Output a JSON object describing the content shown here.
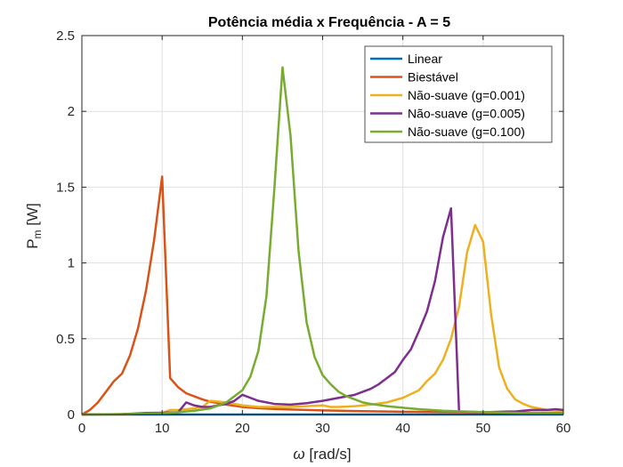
{
  "chart_data": {
    "type": "line",
    "title": "Potência média x Frequência - A = 5",
    "xlabel": {
      "symbol": "ω",
      "text": " [rad/s]"
    },
    "ylabel": {
      "main": "P",
      "sub": "m",
      "unit": " [W]"
    },
    "xlim": [
      0,
      60
    ],
    "ylim": [
      0,
      2.5
    ],
    "xticks": [
      0,
      10,
      20,
      30,
      40,
      50,
      60
    ],
    "yticks": [
      0,
      0.5,
      1,
      1.5,
      2,
      2.5
    ],
    "xtick_labels": [
      "0",
      "10",
      "20",
      "30",
      "40",
      "50",
      "60"
    ],
    "ytick_labels": [
      "0",
      "0.5",
      "1",
      "1.5",
      "2",
      "2.5"
    ],
    "grid": true,
    "legend_position": "top-right",
    "series": [
      {
        "name": "Linear",
        "color": "#0072BD",
        "x": [
          0,
          5,
          10,
          15,
          20,
          25,
          30,
          35,
          40,
          45,
          50,
          55,
          60
        ],
        "y": [
          0,
          0,
          0,
          0,
          0,
          0,
          0,
          0,
          0,
          0,
          0,
          0,
          0
        ]
      },
      {
        "name": "Biestável",
        "color": "#D95319",
        "x": [
          0,
          1,
          2,
          3,
          4,
          5,
          6,
          7,
          8,
          9,
          10,
          11,
          12,
          13,
          14,
          15,
          16,
          17,
          18,
          19,
          20,
          22,
          24,
          26,
          28,
          30,
          35,
          40,
          45,
          50,
          55,
          60
        ],
        "y": [
          0,
          0.03,
          0.08,
          0.15,
          0.22,
          0.27,
          0.39,
          0.57,
          0.82,
          1.15,
          1.57,
          0.24,
          0.18,
          0.14,
          0.12,
          0.1,
          0.085,
          0.075,
          0.065,
          0.058,
          0.05,
          0.042,
          0.037,
          0.033,
          0.03,
          0.027,
          0.022,
          0.018,
          0.016,
          0.014,
          0.012,
          0.011
        ]
      },
      {
        "name": "Não-suave (g=0.001)",
        "color": "#EDB120",
        "x": [
          0,
          5,
          8,
          10,
          11,
          12,
          14,
          15,
          16,
          18,
          20,
          22,
          24,
          26,
          28,
          30,
          31,
          32,
          34,
          36,
          38,
          40,
          42,
          43,
          44,
          45,
          46,
          47,
          48,
          49,
          50,
          51,
          52,
          53,
          54,
          55,
          56,
          58,
          60
        ],
        "y": [
          0,
          0.002,
          0.005,
          0.01,
          0.03,
          0.03,
          0.04,
          0.05,
          0.09,
          0.08,
          0.06,
          0.05,
          0.05,
          0.05,
          0.055,
          0.06,
          0.05,
          0.05,
          0.055,
          0.065,
          0.08,
          0.11,
          0.16,
          0.22,
          0.27,
          0.36,
          0.5,
          0.71,
          1.07,
          1.25,
          1.14,
          0.66,
          0.31,
          0.17,
          0.1,
          0.07,
          0.05,
          0.03,
          0.025
        ]
      },
      {
        "name": "Não-suave (g=0.005)",
        "color": "#7E2F8E",
        "x": [
          0,
          5,
          8,
          10,
          12,
          13,
          14,
          15,
          16,
          17,
          18,
          19,
          20,
          21,
          22,
          24,
          26,
          28,
          30,
          32,
          34,
          35,
          36,
          37,
          38,
          39,
          40,
          41,
          42,
          43,
          44,
          45,
          46,
          47,
          50,
          53,
          54,
          56,
          58,
          59,
          60
        ],
        "y": [
          0,
          0.002,
          0.01,
          0.012,
          0.015,
          0.08,
          0.06,
          0.05,
          0.05,
          0.06,
          0.07,
          0.09,
          0.13,
          0.11,
          0.09,
          0.07,
          0.065,
          0.075,
          0.09,
          0.11,
          0.13,
          0.15,
          0.17,
          0.2,
          0.24,
          0.28,
          0.36,
          0.43,
          0.55,
          0.68,
          0.88,
          1.17,
          1.36,
          0.02,
          0.015,
          0.02,
          0.02,
          0.03,
          0.03,
          0.035,
          0.03
        ]
      },
      {
        "name": "Não-suave (g=0.100)",
        "color": "#77AC30",
        "x": [
          0,
          5,
          10,
          12,
          14,
          16,
          17,
          18,
          19,
          20,
          21,
          22,
          23,
          24,
          25,
          26,
          27,
          28,
          29,
          30,
          31,
          32,
          33,
          34,
          35,
          36,
          38,
          40,
          42,
          45,
          50,
          55,
          60
        ],
        "y": [
          0,
          0.003,
          0.008,
          0.015,
          0.025,
          0.04,
          0.06,
          0.08,
          0.12,
          0.16,
          0.25,
          0.42,
          0.78,
          1.5,
          2.29,
          1.84,
          1.08,
          0.61,
          0.38,
          0.26,
          0.2,
          0.15,
          0.12,
          0.1,
          0.08,
          0.07,
          0.055,
          0.045,
          0.035,
          0.025,
          0.016,
          0.01,
          0.008
        ]
      }
    ]
  }
}
